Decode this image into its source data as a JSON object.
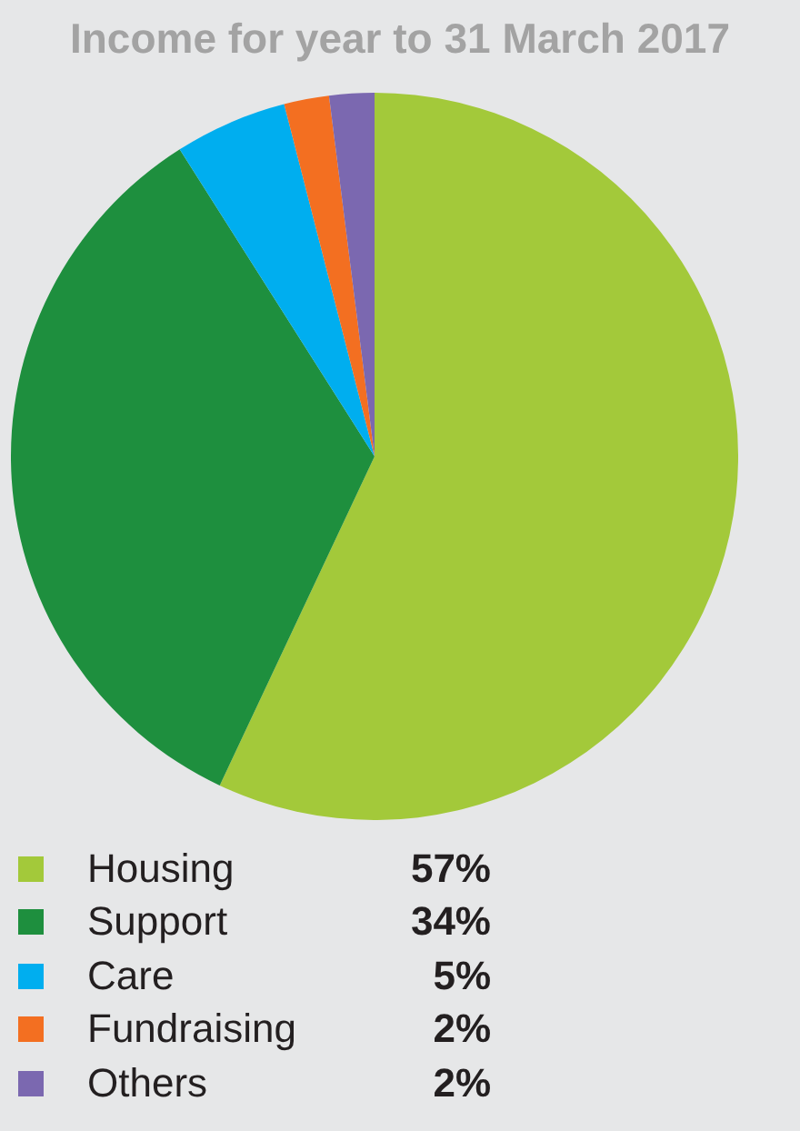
{
  "chart_data": {
    "type": "pie",
    "title": "Income for year to 31 March 2017",
    "categories": [
      "Housing",
      "Support",
      "Care",
      "Fundraising",
      "Others"
    ],
    "values": [
      57,
      34,
      5,
      2,
      2
    ],
    "colors": [
      "#a3c93a",
      "#1e8f3e",
      "#00aeef",
      "#f36f21",
      "#7b68b0"
    ],
    "value_labels": [
      "57%",
      "34%",
      "5%",
      "2%",
      "2%"
    ],
    "legend": "bottom"
  }
}
